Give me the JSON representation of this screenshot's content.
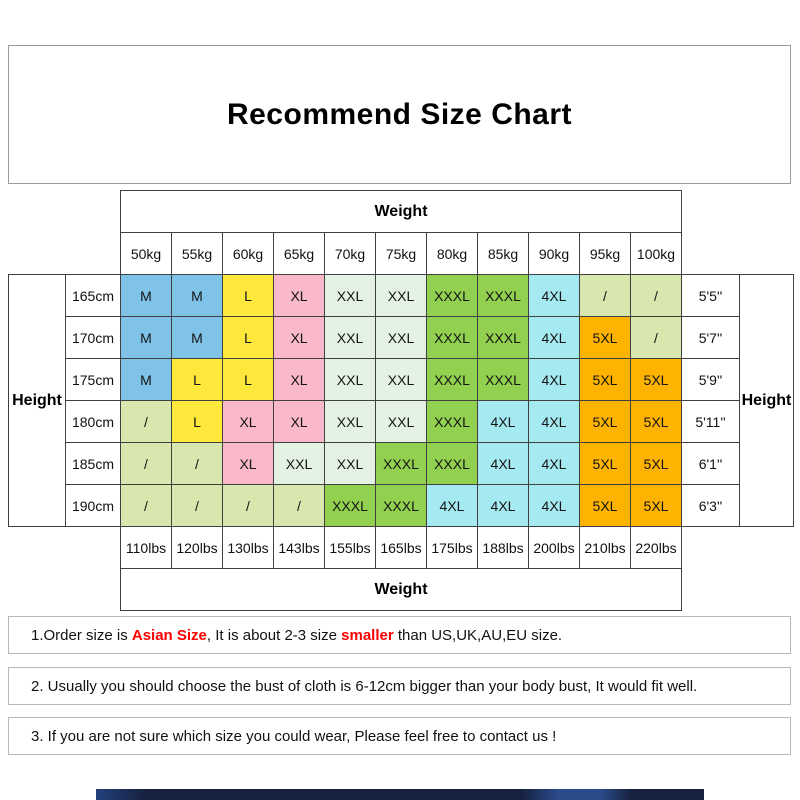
{
  "title_label": "Recommend Size Chart",
  "colors": {
    "table_border": "#404040",
    "box_border": "#9a9a9a",
    "note_border": "#b8b8b8",
    "note_red": "#ff0000",
    "bottom_strip_navy": "#16223f"
  },
  "chart_data": {
    "type": "table",
    "title": "Recommend Size Chart",
    "weight_label": "Weight",
    "height_label": "Height",
    "weights_kg": [
      "50kg",
      "55kg",
      "60kg",
      "65kg",
      "70kg",
      "75kg",
      "80kg",
      "85kg",
      "90kg",
      "95kg",
      "100kg"
    ],
    "weights_lbs": [
      "110lbs",
      "120lbs",
      "130lbs",
      "143lbs",
      "155lbs",
      "165lbs",
      "175lbs",
      "188lbs",
      "200lbs",
      "210lbs",
      "220lbs"
    ],
    "heights_cm": [
      "165cm",
      "170cm",
      "175cm",
      "180cm",
      "185cm",
      "190cm"
    ],
    "heights_ft": [
      "5'5''",
      "5'7''",
      "5'9''",
      "5'11''",
      "6'1''",
      "6'3''"
    ],
    "size_grid": [
      [
        "M",
        "M",
        "L",
        "XL",
        "XXL",
        "XXL",
        "XXXL",
        "XXXL",
        "4XL",
        "/",
        "/"
      ],
      [
        "M",
        "M",
        "L",
        "XL",
        "XXL",
        "XXL",
        "XXXL",
        "XXXL",
        "4XL",
        "5XL",
        "/"
      ],
      [
        "M",
        "L",
        "L",
        "XL",
        "XXL",
        "XXL",
        "XXXL",
        "XXXL",
        "4XL",
        "5XL",
        "5XL"
      ],
      [
        "/",
        "L",
        "XL",
        "XL",
        "XXL",
        "XXL",
        "XXXL",
        "4XL",
        "4XL",
        "5XL",
        "5XL"
      ],
      [
        "/",
        "/",
        "XL",
        "XXL",
        "XXL",
        "XXXL",
        "XXXL",
        "4XL",
        "4XL",
        "5XL",
        "5XL"
      ],
      [
        "/",
        "/",
        "/",
        "/",
        "XXXL",
        "XXXL",
        "4XL",
        "4XL",
        "4XL",
        "5XL",
        "5XL"
      ]
    ],
    "size_colors": {
      "M": "#7fc4e8",
      "L": "#ffe83c",
      "XL": "#f9b9ca",
      "XXL": "#e3f2e2",
      "XXXL": "#92d050",
      "4XL": "#a5e9f1",
      "5XL": "#ffb301",
      "/": "#d7e7ae"
    }
  },
  "notes": {
    "n1": {
      "p1": "1.Order size is ",
      "asian": "Asian Size",
      "p2": ", It is about 2-3 size ",
      "smaller": "smaller",
      "p3": " than US,UK,AU,EU size."
    },
    "n2": "2. Usually you should choose the bust of cloth is 6-12cm bigger than your body bust, It would fit well.",
    "n3": "3. If you are not sure which size you could wear, Please feel free to contact us !"
  }
}
